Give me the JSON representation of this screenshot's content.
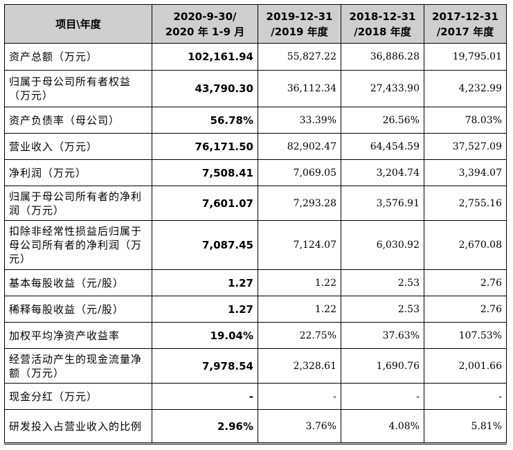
{
  "table": {
    "headers": [
      "项目\\年度",
      "2020-9-30/\n2020 年 1-9 月",
      "2019-12-31\n/2019 年度",
      "2018-12-31\n/2018 年度",
      "2017-12-31\n/2017 年度"
    ],
    "rows": [
      [
        "资产总额（万元）",
        "102,161.94",
        "55,827.22",
        "36,886.28",
        "19,795.01"
      ],
      [
        "归属于母公司所有者权益（万元）",
        "43,790.30",
        "36,112.34",
        "27,433.90",
        "4,232.99"
      ],
      [
        "资产负债率（母公司）",
        "56.78%",
        "33.39%",
        "26.56%",
        "78.03%"
      ],
      [
        "营业收入（万元）",
        "76,171.50",
        "82,902.47",
        "64,454.59",
        "37,527.09"
      ],
      [
        "净利润（万元）",
        "7,508.41",
        "7,069.05",
        "3,204.74",
        "3,394.07"
      ],
      [
        "归属于母公司所有者的净利润（万元）",
        "7,601.07",
        "7,293.28",
        "3,576.91",
        "2,755.16"
      ],
      [
        "扣除非经常性损益后归属于母公司所有者的净利润（万元）",
        "7,087.45",
        "7,124.07",
        "6,030.92",
        "2,670.08"
      ],
      [
        "基本每股收益（元/股）",
        "1.27",
        "1.22",
        "2.53",
        "2.76"
      ],
      [
        "稀释每股收益（元/股）",
        "1.27",
        "1.22",
        "2.53",
        "2.76"
      ],
      [
        "加权平均净资产收益率",
        "19.04%",
        "22.75%",
        "37.63%",
        "107.53%"
      ],
      [
        "经营活动产生的现金流量净额（万元）",
        "7,978.54",
        "2,328.61",
        "1,690.76",
        "2,001.66"
      ],
      [
        "现金分红（万元）",
        "-",
        "-",
        "-",
        "-"
      ],
      [
        "研发投入占营业收入的比例",
        "2.96%",
        "3.76%",
        "4.08%",
        "5.81%"
      ]
    ]
  }
}
